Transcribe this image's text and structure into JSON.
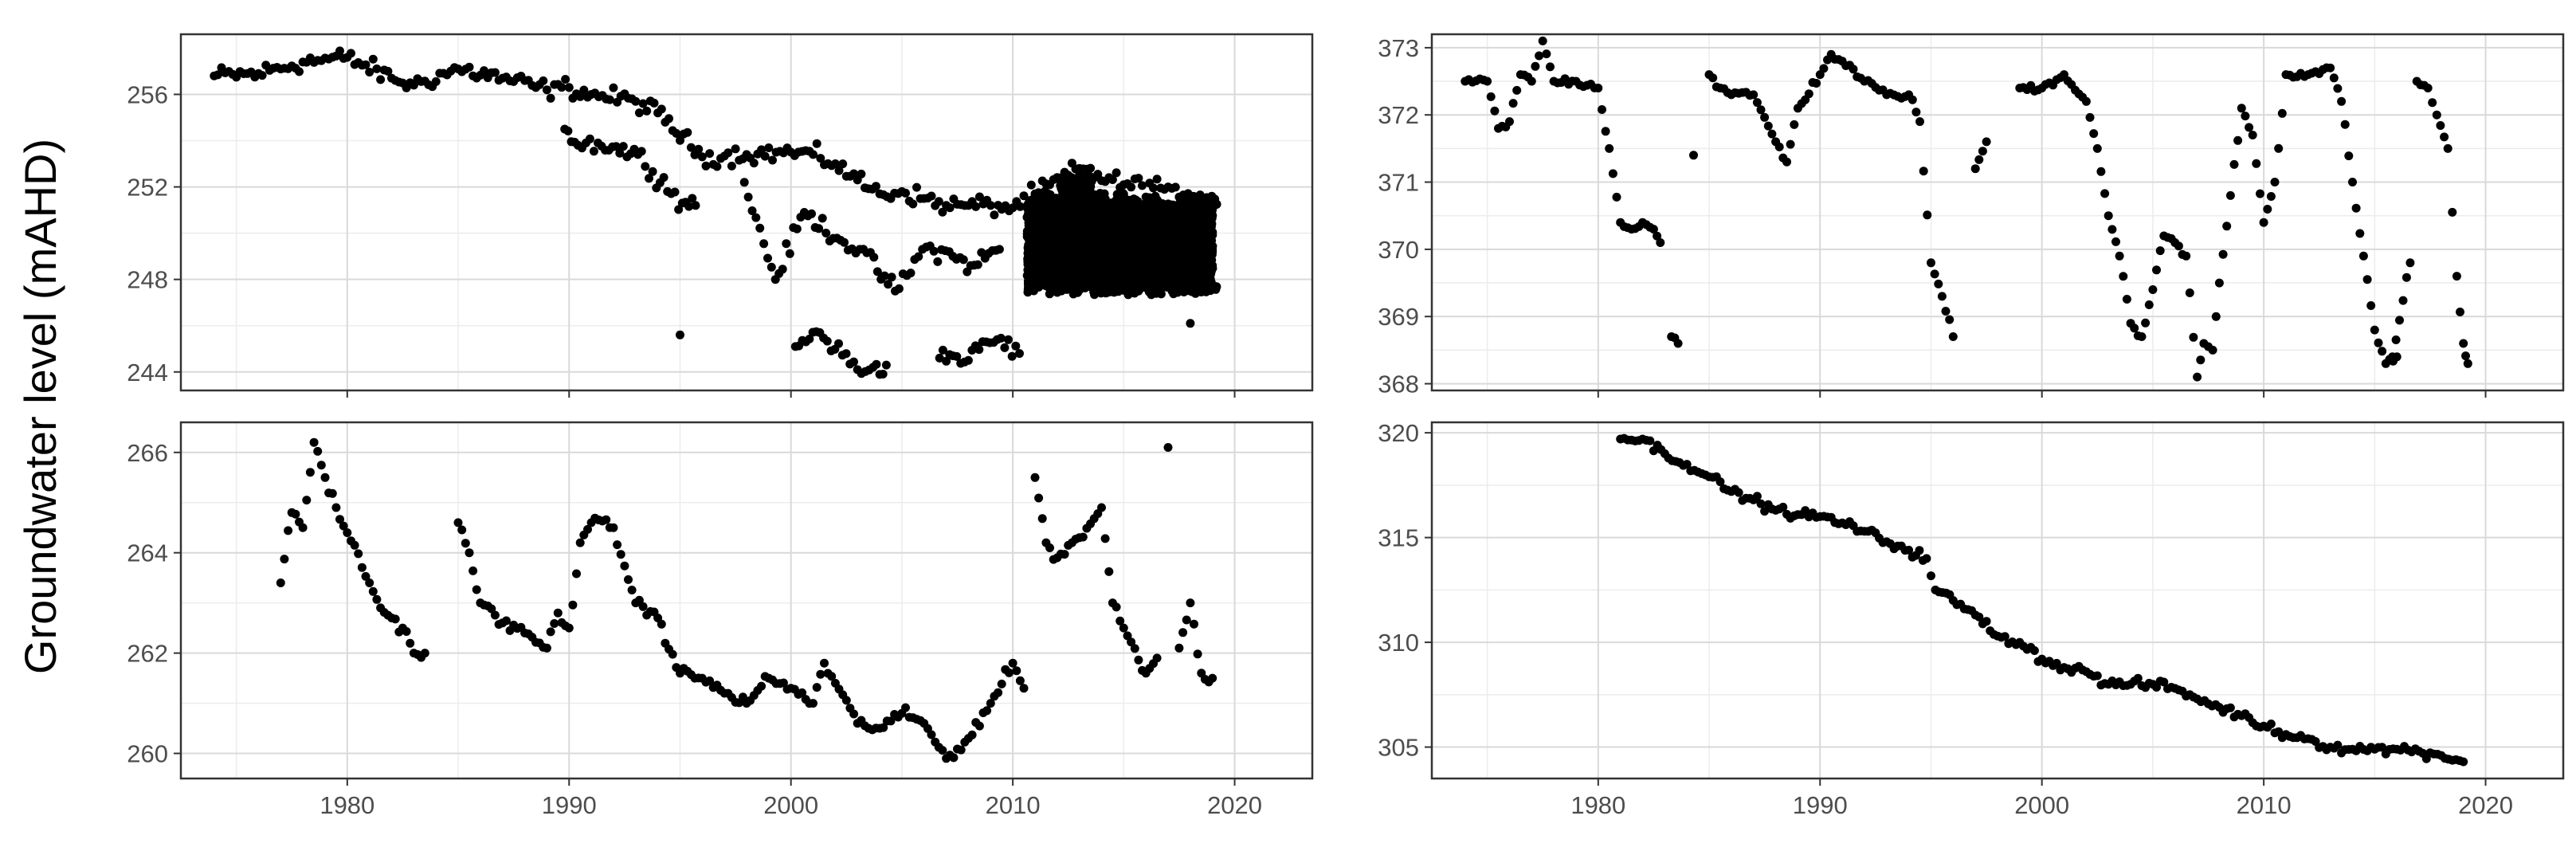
{
  "figure": {
    "ylabel": "Groundwater level (mAHD)",
    "colors": {
      "points": "#000000",
      "grid_major": "#d9d9d9",
      "grid_minor": "#ececec",
      "frame": "#333333",
      "tick_text": "#4d4d4d"
    }
  },
  "chart_data": [
    {
      "type": "scatter",
      "panel": "top-left",
      "xlim": [
        1972.5,
        2023.5
      ],
      "ylim": [
        243.2,
        258.6
      ],
      "x_ticks": [
        1980,
        1990,
        2000,
        2010,
        2020
      ],
      "y_ticks": [
        244,
        248,
        252,
        256
      ],
      "show_x_tick_labels": false,
      "grid": true,
      "noise": 0.35,
      "dense_bands": {
        "x_start": 2010.7,
        "x_end": 2019.0,
        "period": 0.5,
        "low": 247.3,
        "high": 251.8
      },
      "series": [
        {
          "x": [
            1974,
            1976,
            1978,
            1980,
            1982,
            1983,
            1985,
            1987,
            1989,
            1990,
            1991,
            1993,
            1994,
            1996,
            1998,
            2000,
            2001,
            2002,
            2003,
            2004,
            2005,
            2006,
            2007,
            2008,
            2009,
            2010,
            2011,
            2013,
            2015,
            2017,
            2019
          ],
          "y": [
            256.8,
            256.9,
            257.4,
            257.6,
            256.7,
            256.4,
            257.1,
            256.7,
            256.2,
            256.3,
            256.0,
            255.7,
            255.2,
            253.3,
            253.4,
            253.5,
            253.4,
            253.0,
            252.3,
            251.7,
            251.8,
            251.5,
            251.2,
            251.2,
            251.2,
            251.1,
            251.7,
            252.8,
            252.1,
            252.0,
            249.2
          ]
        },
        {
          "x": [
            1989.8,
            1990.4,
            1991.3,
            1993.1,
            1995.1,
            1995.7,
            1997.9,
            1999.3,
            2000.6,
            2002.4,
            2003.1,
            2004.7,
            2006.1,
            2007.3,
            2008.1,
            2009.4
          ],
          "y": [
            254.5,
            253.8,
            253.9,
            253.4,
            251.3,
            251.2,
            252.2,
            248.0,
            250.9,
            249.6,
            249.3,
            247.5,
            249.4,
            249.0,
            248.6,
            249.3
          ]
        },
        {
          "x": [
            1995.0,
            2000.2,
            2001.3,
            2003.0,
            2003.7,
            2004.3,
            2006.7,
            2007.3,
            2008.0,
            2008.8,
            2009.3,
            2010.3,
            2018.0
          ],
          "y": [
            245.6,
            245.1,
            245.7,
            244.1,
            244.2,
            244.3,
            244.6,
            244.7,
            244.5,
            245.3,
            245.4,
            244.8,
            246.1
          ]
        }
      ]
    },
    {
      "type": "scatter",
      "panel": "top-right",
      "xlim": [
        1972.5,
        2023.5
      ],
      "ylim": [
        367.9,
        373.2
      ],
      "x_ticks": [
        1980,
        1990,
        2000,
        2010,
        2020
      ],
      "y_ticks": [
        368,
        369,
        370,
        371,
        372,
        373
      ],
      "show_x_tick_labels": false,
      "grid": true,
      "noise": 0.05,
      "series": [
        {
          "x": [
            1974.0,
            1975.0,
            1975.5,
            1976.0,
            1976.5,
            1977.0,
            1977.5,
            1978.0,
            1979.0,
            1980.0,
            1980.5,
            1981.0,
            1981.5,
            1982.0,
            1982.5,
            1982.8
          ],
          "y": [
            372.5,
            372.5,
            371.8,
            371.9,
            372.6,
            372.5,
            373.1,
            372.5,
            372.5,
            372.4,
            371.5,
            370.4,
            370.3,
            370.4,
            370.3,
            370.1
          ]
        },
        {
          "x": [
            1985.0,
            1985.5,
            1986.0,
            1987.0,
            1988.0,
            1988.5,
            1989.0,
            1990.0,
            1990.5,
            1991.0,
            1992.0,
            1993.0,
            1994.0,
            1994.5,
            1995.0,
            1995.5,
            1996.0,
            1997.0,
            1997.5
          ],
          "y": [
            372.6,
            372.4,
            372.3,
            372.3,
            371.6,
            371.3,
            372.1,
            372.6,
            372.9,
            372.8,
            372.5,
            372.3,
            372.3,
            371.9,
            369.8,
            369.3,
            368.7,
            371.2,
            371.6
          ]
        },
        {
          "x": [
            1999.0,
            2000.0,
            2001.0,
            2002.0,
            2002.5,
            2003.0,
            2003.5,
            2004.0,
            2004.5,
            2005.0,
            2005.5,
            2006.0,
            2006.5,
            2007.0,
            2007.3,
            2007.7,
            2008.0,
            2008.5,
            2009.0,
            2009.5,
            2010.0,
            2010.5,
            2011.0,
            2012.0,
            2013.0,
            2013.5,
            2014.0,
            2014.5,
            2015.0,
            2015.5,
            2016.0
          ],
          "y": [
            372.4,
            372.4,
            372.6,
            372.2,
            371.5,
            370.5,
            369.9,
            368.9,
            368.7,
            369.4,
            370.2,
            370.1,
            369.9,
            368.1,
            368.6,
            368.5,
            369.5,
            370.8,
            372.1,
            371.7,
            370.4,
            371.0,
            372.6,
            372.6,
            372.7,
            372.2,
            371.0,
            369.9,
            368.8,
            368.3,
            368.4
          ]
        },
        {
          "x": [
            1983.3,
            1983.6,
            1984.3,
            2015.8,
            2016.6,
            2016.9,
            2017.4,
            2017.8,
            2018.3,
            2018.7,
            2019.0,
            2019.2
          ],
          "y": [
            368.7,
            368.6,
            371.4,
            368.4,
            369.8,
            372.5,
            372.4,
            372.0,
            371.5,
            369.6,
            368.6,
            368.3
          ]
        }
      ]
    },
    {
      "type": "scatter",
      "panel": "bottom-left",
      "xlim": [
        1972.5,
        2023.5
      ],
      "ylim": [
        259.5,
        266.6
      ],
      "x_ticks": [
        1980,
        1990,
        2000,
        2010,
        2020
      ],
      "y_ticks": [
        260,
        262,
        264,
        266
      ],
      "show_x_tick_labels": true,
      "grid": true,
      "noise": 0.1,
      "series": [
        {
          "x": [
            1977.0,
            1977.5,
            1978.0,
            1978.5,
            1979.0,
            1979.5,
            1980.0,
            1981.0,
            1981.5,
            1982.0,
            1982.5,
            1983.0,
            1983.5
          ],
          "y": [
            263.4,
            264.8,
            264.5,
            266.2,
            265.5,
            264.9,
            264.4,
            263.4,
            262.9,
            262.7,
            262.5,
            262.0,
            262.0
          ]
        },
        {
          "x": [
            1985.0,
            1985.5,
            1986.0,
            1987.0,
            1988.0,
            1989.0,
            1989.5,
            1990.0,
            1990.5,
            1991.0,
            1992.0,
            1993.0,
            1994.0,
            1995.0,
            1996.0,
            1997.0,
            1998.0,
            1999.0,
            2000.0,
            2001.0,
            2001.5,
            2002.0,
            2003.0,
            2004.0,
            2005.0,
            2006.0,
            2007.0,
            2008.0,
            2009.0,
            2010.0,
            2010.5,
            2011.0,
            2011.5,
            2012.0,
            2013.0,
            2014.0,
            2014.5,
            2015.0,
            2016.0,
            2016.5,
            2017.0,
            2017.5,
            2018.0,
            2018.5,
            2019.0
          ],
          "y": [
            264.6,
            264.0,
            263.0,
            262.6,
            262.4,
            262.1,
            262.8,
            262.5,
            264.2,
            264.6,
            264.5,
            263.0,
            262.7,
            261.6,
            261.5,
            261.2,
            261.0,
            261.5,
            261.3,
            261.0,
            261.8,
            261.4,
            260.6,
            260.5,
            260.8,
            260.6,
            259.9,
            260.3,
            261.0,
            261.8,
            261.3,
            265.5,
            264.2,
            263.9,
            264.3,
            264.9,
            263.0,
            262.5,
            261.6,
            261.9,
            266.1,
            262.1,
            263.0,
            261.6,
            261.5
          ]
        }
      ]
    },
    {
      "type": "scatter",
      "panel": "bottom-right",
      "xlim": [
        1972.5,
        2023.5
      ],
      "ylim": [
        303.5,
        320.5
      ],
      "x_ticks": [
        1980,
        1990,
        2000,
        2010,
        2020
      ],
      "y_ticks": [
        305,
        310,
        315,
        320
      ],
      "show_x_tick_labels": true,
      "grid": true,
      "noise": 0.2,
      "series": [
        {
          "x": [
            1981,
            1982,
            1983,
            1984,
            1985,
            1986,
            1987,
            1988,
            1989,
            1990,
            1991,
            1992,
            1993,
            1994,
            1994.8,
            1995.2,
            1996,
            1997,
            1998,
            1999,
            2000,
            2001,
            2002,
            2003,
            2004,
            2005,
            2006,
            2007,
            2008,
            2009,
            2010,
            2011,
            2012,
            2013,
            2014,
            2015,
            2016,
            2017,
            2018,
            2019
          ],
          "y": [
            319.7,
            319.7,
            319.0,
            318.5,
            317.9,
            317.2,
            316.8,
            316.3,
            316.1,
            316.0,
            315.7,
            315.3,
            314.8,
            314.4,
            314.0,
            312.5,
            312.0,
            311.3,
            310.3,
            310.0,
            309.2,
            308.8,
            308.6,
            308.0,
            308.0,
            308.0,
            307.8,
            307.3,
            306.9,
            306.5,
            306.0,
            305.6,
            305.4,
            305.0,
            304.9,
            304.9,
            304.9,
            304.8,
            304.6,
            304.3
          ]
        }
      ]
    }
  ]
}
